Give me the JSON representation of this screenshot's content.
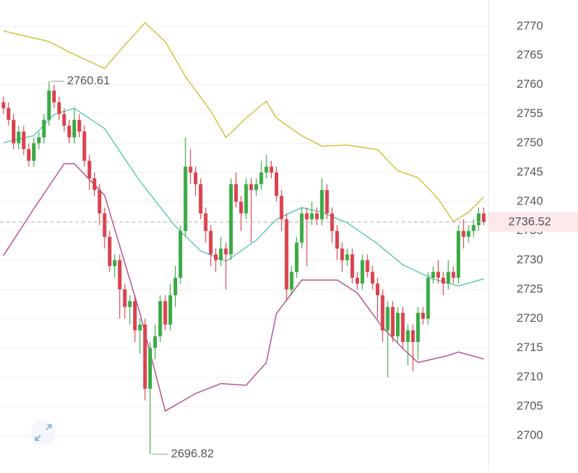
{
  "chart_data": {
    "type": "candlestick",
    "open": [
      2757,
      2756,
      2754,
      2750,
      2752,
      2749,
      2747,
      2750,
      2751,
      2754,
      2759,
      2757,
      2755,
      2753,
      2751,
      2754,
      2752,
      2747,
      2744,
      2742,
      2738,
      2734,
      2729,
      2730,
      2725,
      2722,
      2723,
      2718,
      2719,
      2708,
      2715,
      2717,
      2723,
      2719,
      2724,
      2727,
      2735,
      2746,
      2745,
      2743,
      2738,
      2735,
      2731,
      2730,
      2732,
      2731,
      2743,
      2740,
      2738,
      2743,
      2742,
      2743,
      2745,
      2746,
      2745,
      2741,
      2737,
      2725,
      2728,
      2733,
      2738,
      2737,
      2738,
      2737,
      2742,
      2738,
      2735,
      2732,
      2730,
      2731,
      2727,
      2726,
      2730,
      2728,
      2726,
      2724,
      2718,
      2722,
      2717,
      2721,
      2716,
      2718,
      2716,
      2721,
      2720,
      2727,
      2728,
      2727,
      2726,
      2728,
      2727,
      2735,
      2734,
      2735,
      2736,
      2738
    ],
    "high": [
      2758,
      2757,
      2755,
      2753,
      2753,
      2750,
      2751,
      2752,
      2755,
      2760.61,
      2760,
      2758,
      2756,
      2754,
      2756,
      2755,
      2753,
      2748,
      2745,
      2743,
      2739,
      2735,
      2731,
      2731,
      2726,
      2724,
      2724,
      2720,
      2720,
      2716,
      2719,
      2724,
      2724,
      2726,
      2729,
      2736,
      2751,
      2749,
      2746,
      2744,
      2739,
      2736,
      2732,
      2734,
      2733,
      2744,
      2745,
      2741,
      2744,
      2744,
      2744,
      2747,
      2748,
      2747,
      2746,
      2742,
      2738,
      2729,
      2734,
      2739,
      2739,
      2740,
      2739,
      2744,
      2743,
      2739,
      2736,
      2733,
      2732,
      2732,
      2728,
      2731,
      2731,
      2729,
      2727,
      2725,
      2723,
      2723,
      2722,
      2722,
      2719,
      2719,
      2722,
      2722,
      2728,
      2729,
      2730,
      2728,
      2730,
      2729,
      2736,
      2737,
      2736,
      2737,
      2739,
      2739
    ],
    "low": [
      2755,
      2753,
      2749,
      2749,
      2748,
      2746,
      2746,
      2749,
      2750,
      2753,
      2756,
      2754,
      2752,
      2750,
      2750,
      2751,
      2746,
      2742,
      2741,
      2736,
      2732,
      2728,
      2727,
      2720,
      2720,
      2719,
      2716,
      2714,
      2706,
      2696.82,
      2713,
      2716,
      2718,
      2718,
      2722,
      2726,
      2734,
      2743,
      2741,
      2737,
      2733,
      2729,
      2728,
      2729,
      2725,
      2730,
      2739,
      2735,
      2737,
      2733,
      2741,
      2742,
      2744,
      2744,
      2740,
      2735,
      2723,
      2724,
      2727,
      2732,
      2729,
      2736,
      2736,
      2736,
      2737,
      2733,
      2730,
      2728,
      2729,
      2726,
      2725,
      2725,
      2727,
      2725,
      2720,
      2716,
      2710,
      2716,
      2716,
      2715,
      2712,
      2711,
      2713,
      2719,
      2719,
      2726,
      2726,
      2724,
      2725,
      2726,
      2726,
      2732,
      2733,
      2734,
      2735,
      2736
    ],
    "close": [
      2756,
      2754,
      2750,
      2752,
      2749,
      2747,
      2750,
      2751,
      2754,
      2759,
      2757,
      2755,
      2753,
      2751,
      2754,
      2752,
      2747,
      2744,
      2742,
      2738,
      2734,
      2729,
      2730,
      2725,
      2722,
      2723,
      2718,
      2719,
      2708,
      2715,
      2717,
      2723,
      2719,
      2724,
      2727,
      2735,
      2746,
      2745,
      2743,
      2738,
      2735,
      2731,
      2730,
      2732,
      2731,
      2743,
      2740,
      2738,
      2743,
      2742,
      2743,
      2745,
      2746,
      2745,
      2741,
      2737,
      2725,
      2728,
      2733,
      2738,
      2737,
      2738,
      2737,
      2742,
      2738,
      2735,
      2732,
      2730,
      2731,
      2727,
      2726,
      2730,
      2728,
      2726,
      2724,
      2718,
      2722,
      2717,
      2721,
      2716,
      2718,
      2716,
      2721,
      2720,
      2727,
      2728,
      2727,
      2726,
      2728,
      2727,
      2735,
      2734,
      2735,
      2736,
      2738,
      2736.52
    ],
    "up_color": "#3aaa45",
    "down_color": "#d9434f",
    "bands": [
      {
        "color": "#cfc33a",
        "x": [
          0,
          9,
          13,
          20,
          24,
          28,
          32,
          36,
          41,
          44,
          48,
          52,
          54,
          59,
          63,
          68,
          74,
          78,
          82,
          86,
          89,
          92,
          95
        ],
        "values": [
          2769.2,
          2767.4,
          2765.6,
          2762.8,
          2766.8,
          2770.6,
          2767.4,
          2761.4,
          2755.5,
          2751,
          2754.3,
          2757.2,
          2754.3,
          2751.3,
          2749.5,
          2749.7,
          2748.9,
          2745.3,
          2744.1,
          2740.5,
          2736.6,
          2738.2,
          2740.8
        ]
      },
      {
        "color": "#5ec9b6",
        "x": [
          0,
          6,
          10,
          14,
          20,
          27,
          34,
          39,
          44,
          50,
          54,
          59,
          63,
          68,
          74,
          79,
          85,
          90,
          95
        ],
        "values": [
          2750.1,
          2751.3,
          2754.9,
          2756,
          2752.5,
          2743.5,
          2735.8,
          2731.6,
          2729.8,
          2733.4,
          2737,
          2739,
          2738.2,
          2736.4,
          2732.8,
          2729.2,
          2726.8,
          2725.6,
          2726.8
        ]
      },
      {
        "color": "#b4508c",
        "x": [
          0,
          6,
          12,
          14,
          20,
          27,
          32,
          38,
          43,
          48,
          52,
          54,
          59,
          66,
          70,
          75,
          79,
          82,
          88,
          90,
          95
        ],
        "values": [
          2730.8,
          2738.8,
          2746.5,
          2746.5,
          2741.1,
          2720.9,
          2704.2,
          2707.2,
          2708.9,
          2708.6,
          2712.5,
          2720.9,
          2726.6,
          2726.6,
          2724.4,
          2718.5,
          2714.9,
          2712.5,
          2713.7,
          2714.3,
          2713.1
        ]
      }
    ],
    "ylim": [
      2694.2,
      2774.5
    ],
    "yticks": [
      2700,
      2705,
      2710,
      2715,
      2720,
      2725,
      2730,
      2735,
      2740,
      2745,
      2750,
      2755,
      2760,
      2765,
      2770
    ],
    "grid": true
  }
}
